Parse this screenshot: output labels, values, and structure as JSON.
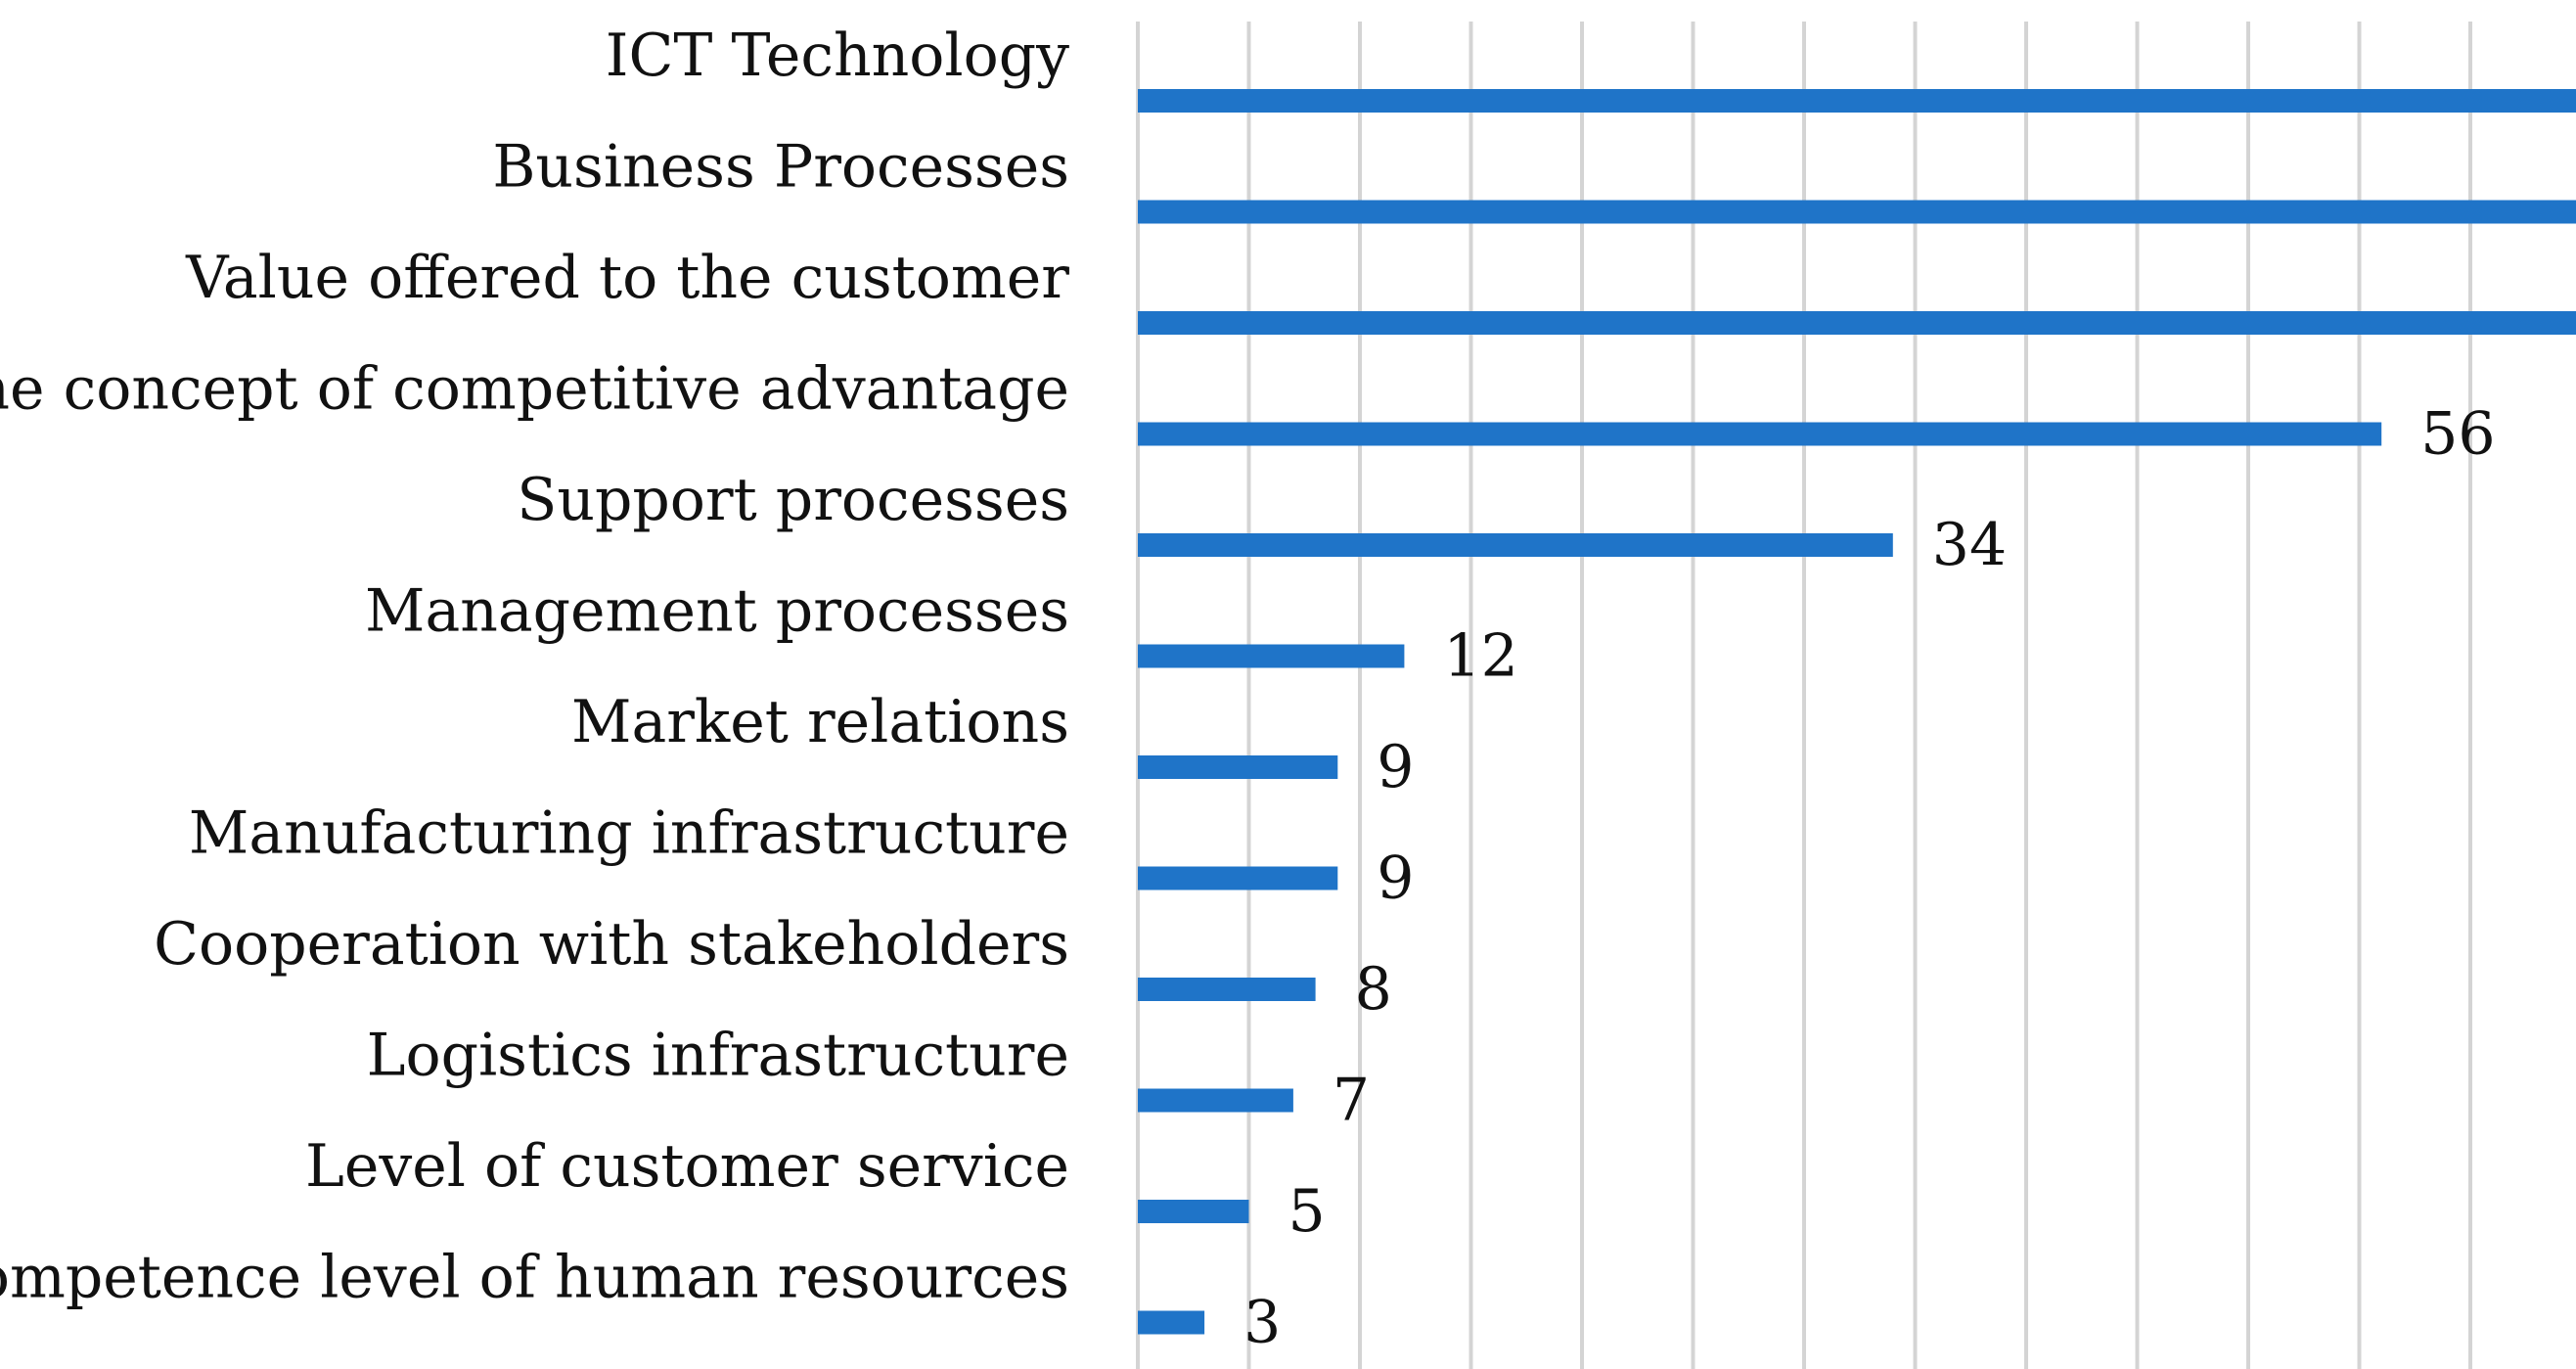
{
  "chart_data": {
    "type": "bar",
    "orientation": "horizontal",
    "categories": [
      "ICT Technology",
      "Business Processes",
      "Value offered to the customer",
      "The concept of competitive advantage",
      "Support processes",
      "Management processes",
      "Market relations",
      "Manufacturing infrastructure",
      "Cooperation with stakeholders",
      "Logistics infrastructure",
      "Level of customer service",
      "Competence level of human resources"
    ],
    "values": [
      70,
      70,
      70,
      56,
      34,
      12,
      9,
      9,
      8,
      7,
      5,
      3
    ],
    "title": "",
    "xlabel": "",
    "ylabel": "",
    "xlim": [
      0,
      80
    ],
    "grid": true,
    "data_labels": true,
    "bar_color": "#1f74c8",
    "grid_color": "#d4d4d4"
  }
}
